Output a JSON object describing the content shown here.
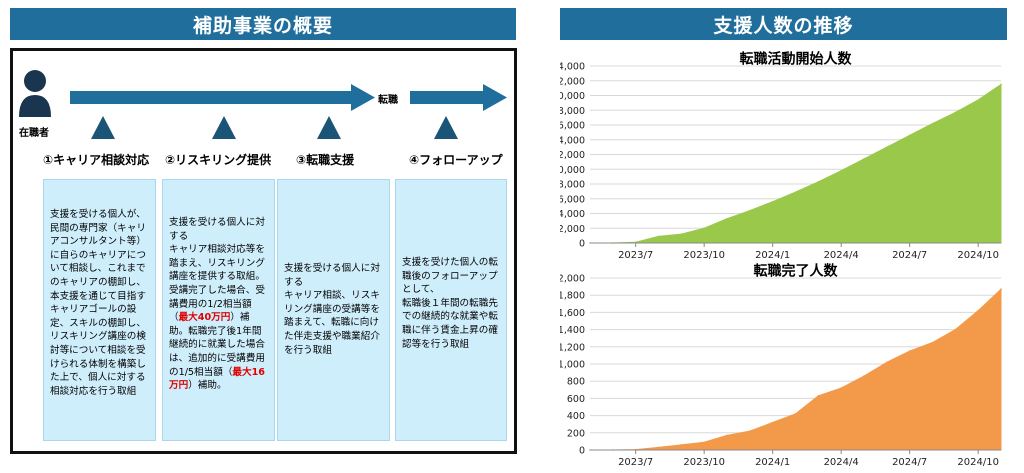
{
  "left": {
    "title": "補助事業の概要",
    "person_label": "在職者",
    "transition_label": "転職",
    "steps": [
      {
        "title": "①キャリア相談対応",
        "parts": [
          {
            "t": "支援を受ける個人が、民間の専門家（キャリアコンサルタント等）に自らのキャリアについて相談し、これまでのキャリアの棚卸し、本支援を通じて目指すキャリアゴールの設定、スキルの棚卸し、リスキリング講座の検討等について相談を受けられる体制を構築した上で、個人に対する相談対応を行う取組",
            "red": false
          }
        ]
      },
      {
        "title": "②リスキリング提供",
        "parts": [
          {
            "t": "支援を受ける個人に対する",
            "red": false,
            "br": true
          },
          {
            "t": "キャリア相談対応等を踏まえ、リスキリング講座を提供する取組。",
            "red": false,
            "br": true
          },
          {
            "t": "受講完了した場合、受講費用の1/2相当額（",
            "red": false
          },
          {
            "t": "最大40万円",
            "red": true
          },
          {
            "t": "）補助。転職完了後1年間継続的に就業した場合は、追加的に受講費用の1/5相当額（",
            "red": false
          },
          {
            "t": "最大16万円",
            "red": true
          },
          {
            "t": "）補助。",
            "red": false
          }
        ]
      },
      {
        "title": "③転職支援",
        "parts": [
          {
            "t": "支援を受ける個人に対する",
            "red": false,
            "br": true
          },
          {
            "t": "キャリア相談、リスキリング講座の受講等を踏まえて、転職に向けた伴走支援や職業紹介を行う取組",
            "red": false
          }
        ]
      },
      {
        "title": "④フォローアップ",
        "parts": [
          {
            "t": "支援を受けた個人の転職後のフォローアップとして、",
            "red": false,
            "br": true
          },
          {
            "t": "転職後１年間の転職先での継続的な就業や転職に伴う賃金上昇の確認等を行う取組",
            "red": false
          }
        ]
      }
    ]
  },
  "right": {
    "title": "支援人数の推移",
    "colors": {
      "green": "#9ac84b",
      "orange": "#f39a4a"
    }
  },
  "chart_data": [
    {
      "type": "area",
      "title": "転職活動開始人数",
      "x": [
        "2023/5",
        "2023/6",
        "2023/7",
        "2023/8",
        "2023/9",
        "2023/10",
        "2023/11",
        "2023/12",
        "2024/1",
        "2024/2",
        "2024/3",
        "2024/4",
        "2024/5",
        "2024/6",
        "2024/7",
        "2024/8",
        "2024/9",
        "2024/10",
        "2024/11"
      ],
      "values": [
        0,
        0,
        100,
        900,
        1200,
        2000,
        3300,
        4400,
        5600,
        6900,
        8300,
        9800,
        11400,
        13000,
        14600,
        16200,
        17700,
        19400,
        21500
      ],
      "x_tick_labels": [
        "2023/7",
        "2023/10",
        "2024/1",
        "2024/4",
        "2024/7",
        "2024/10"
      ],
      "y_ticks": [
        "0",
        "2,000",
        "4,000",
        "6,000",
        "8,000",
        "10,000",
        "12,000",
        "14,000",
        "16,000",
        "18,000",
        "20,000",
        "22,000",
        "24,000"
      ],
      "ylim": [
        0,
        24000
      ],
      "color": "#9ac84b"
    },
    {
      "type": "area",
      "title": "転職完了人数",
      "x": [
        "2023/5",
        "2023/6",
        "2023/7",
        "2023/8",
        "2023/9",
        "2023/10",
        "2023/11",
        "2023/12",
        "2024/1",
        "2024/2",
        "2024/3",
        "2024/4",
        "2024/5",
        "2024/6",
        "2024/7",
        "2024/8",
        "2024/9",
        "2024/10",
        "2024/11"
      ],
      "values": [
        0,
        0,
        5,
        30,
        60,
        90,
        170,
        220,
        320,
        420,
        630,
        720,
        860,
        1020,
        1150,
        1250,
        1400,
        1620,
        1870
      ],
      "x_tick_labels": [
        "2023/7",
        "2023/10",
        "2024/1",
        "2024/4",
        "2024/7",
        "2024/10"
      ],
      "y_ticks": [
        "0",
        "200",
        "400",
        "600",
        "800",
        "1,000",
        "1,200",
        "1,400",
        "1,600",
        "1,800",
        "2,000"
      ],
      "ylim": [
        0,
        2000
      ],
      "color": "#f39a4a"
    }
  ]
}
